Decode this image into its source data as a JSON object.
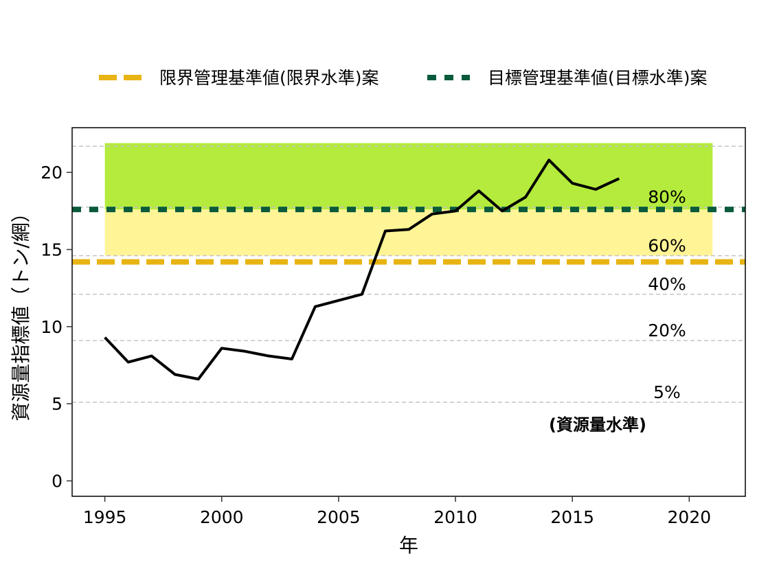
{
  "chart_data": {
    "type": "line",
    "xlabel": "年",
    "ylabel": "資源量指標値（トン/網）",
    "xlim": [
      1993.6,
      2022.4
    ],
    "ylim": [
      -1.0,
      22.9
    ],
    "x_ticks": [
      1995,
      2000,
      2005,
      2010,
      2015,
      2020
    ],
    "y_ticks": [
      0,
      5,
      10,
      15,
      20
    ],
    "grid": "horizontal dashed lines at level boundaries",
    "series": [
      {
        "x": [
          1995,
          1996,
          1997,
          1998,
          1999,
          2000,
          2001,
          2002,
          2003,
          2004,
          2005,
          2006,
          2007,
          2008,
          2009,
          2010,
          2011,
          2012,
          2013,
          2014,
          2015,
          2016,
          2017
        ],
        "values": [
          9.3,
          7.7,
          8.1,
          6.9,
          6.6,
          8.6,
          8.4,
          8.1,
          7.9,
          11.3,
          11.7,
          12.1,
          16.2,
          16.3,
          17.3,
          17.5,
          18.8,
          17.5,
          18.4,
          20.8,
          19.3,
          18.9,
          19.6
        ],
        "color": "#000000"
      }
    ],
    "reference_lines": [
      {
        "name": "限界管理基準値(限界水準)案",
        "y": 14.2,
        "color": "#E8B414",
        "style": "long-dash"
      },
      {
        "name": "目標管理基準値(目標水準)案",
        "y": 17.6,
        "color": "#0A5A3C",
        "style": "dash"
      }
    ],
    "bands": [
      {
        "y_from": 17.6,
        "y_to": 21.9,
        "x_from": 1995,
        "x_to": 2021,
        "color": "#B4EB3C"
      },
      {
        "y_from": 14.6,
        "y_to": 17.6,
        "x_from": 1995,
        "x_to": 2021,
        "color": "#FFF496"
      }
    ],
    "level_lines": [
      {
        "label": "80%",
        "y": 17.75
      },
      {
        "label": "60%",
        "y": 14.6
      },
      {
        "label": "40%",
        "y": 12.1
      },
      {
        "label": "20%",
        "y": 9.1
      },
      {
        "label": "5%",
        "y": 5.1
      }
    ],
    "upper_grid_y": 21.7,
    "level_caption": "(資源量水準)",
    "legend_position": "top"
  }
}
